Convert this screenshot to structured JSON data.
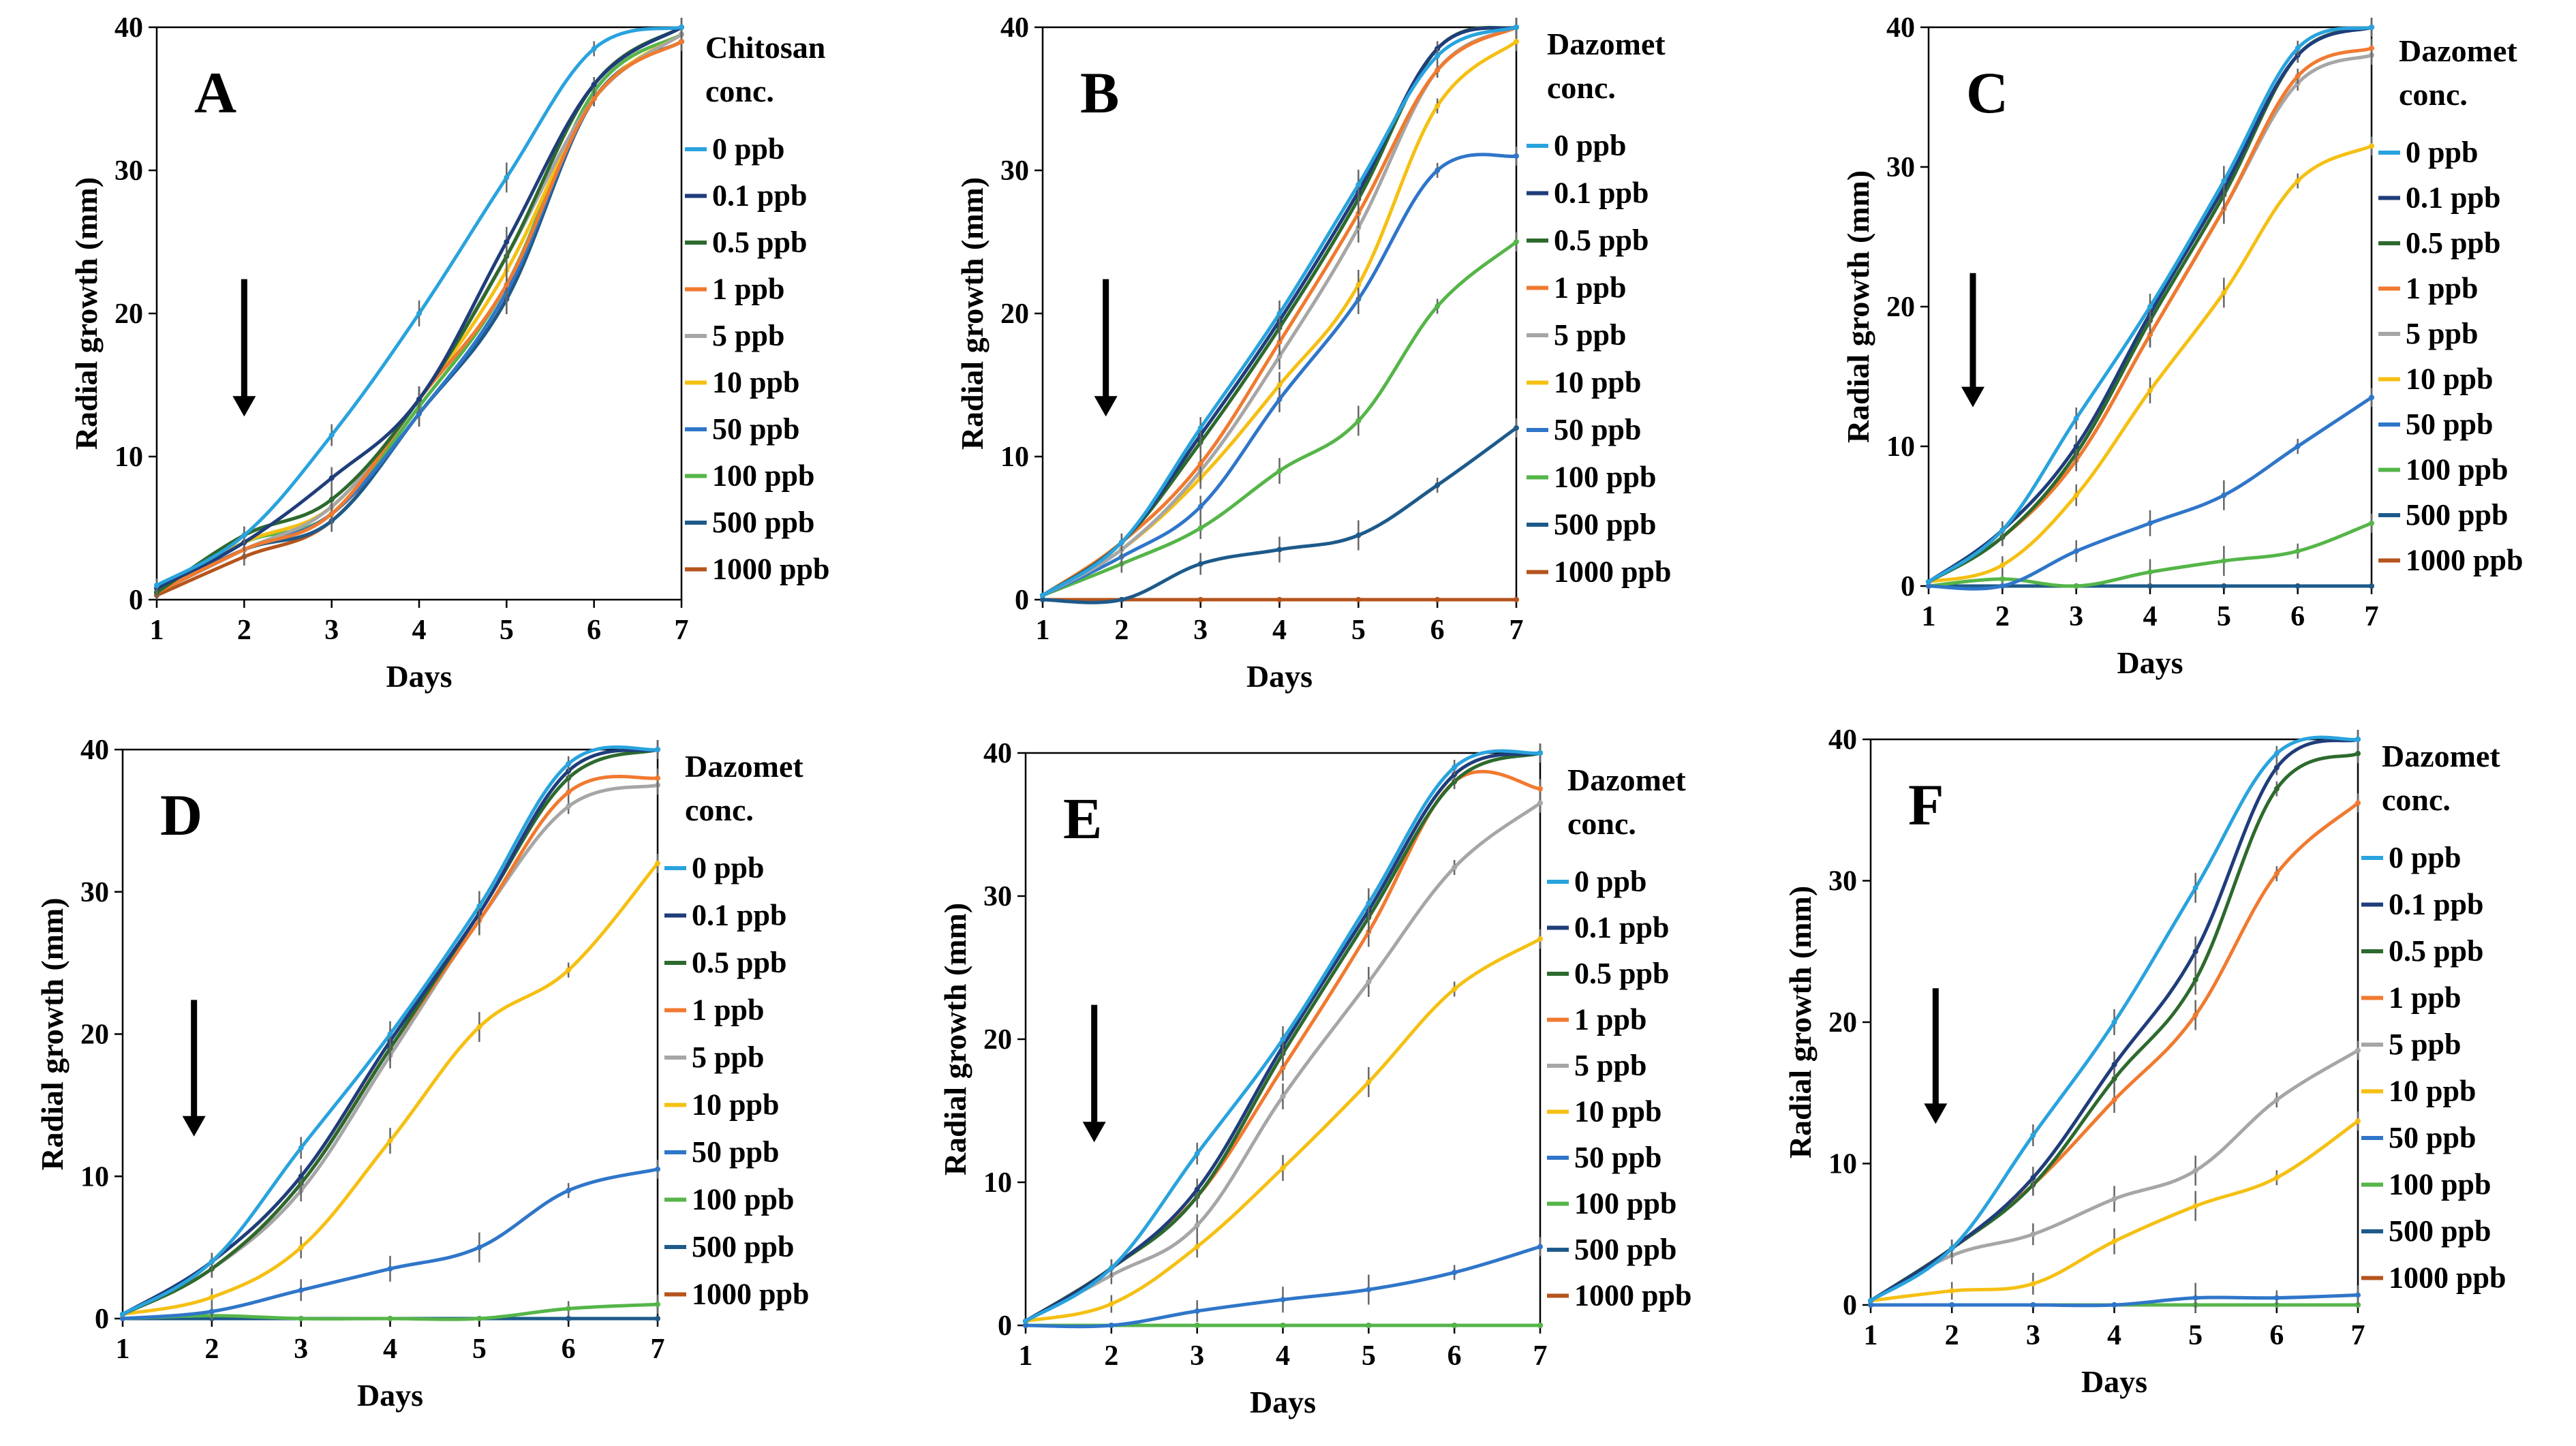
{
  "colors": {
    "0 ppb": "#29a3dd",
    "0.1 ppb": "#1f3d7a",
    "0.5 ppb": "#2d6a2d",
    "1 ppb": "#f07a30",
    "5 ppb": "#a6a6a6",
    "10 ppb": "#f5c013",
    "50 ppb": "#2f76c9",
    "100 ppb": "#55b548",
    "500 ppb": "#1d5a8a",
    "1000 ppb": "#b5541c"
  },
  "chart_data": [
    {
      "type": "line",
      "panel": "A",
      "xlabel": "Days",
      "ylabel": "Radial growth (mm)",
      "legend_title": [
        "Chitosan",
        "conc."
      ],
      "x": [
        1,
        2,
        3,
        4,
        5,
        6,
        7
      ],
      "xlim": [
        1,
        7
      ],
      "ylim": [
        0,
        40
      ],
      "yticks": [
        0,
        10,
        20,
        30,
        40
      ],
      "arrow_day": 2,
      "series": [
        {
          "name": "0 ppb",
          "values": [
            1,
            4.5,
            11.5,
            20,
            29.5,
            38.5,
            40
          ]
        },
        {
          "name": "0.1 ppb",
          "values": [
            0.8,
            4,
            8.5,
            14,
            25,
            36,
            40
          ]
        },
        {
          "name": "0.5 ppb",
          "values": [
            0.5,
            4.5,
            7,
            14,
            24,
            36,
            40
          ]
        },
        {
          "name": "1 ppb",
          "values": [
            0.5,
            3.5,
            6,
            14,
            22,
            35,
            39
          ]
        },
        {
          "name": "5 ppb",
          "values": [
            0.5,
            3.5,
            6.5,
            14,
            24,
            35,
            39.5
          ]
        },
        {
          "name": "10 ppb",
          "values": [
            0.5,
            4,
            6.5,
            14,
            23,
            35,
            39.5
          ]
        },
        {
          "name": "50 ppb",
          "values": [
            0.5,
            3.5,
            6,
            13,
            21.5,
            35,
            39
          ]
        },
        {
          "name": "100 ppb",
          "values": [
            0.5,
            4,
            6,
            13.5,
            22,
            35.5,
            39.5
          ]
        },
        {
          "name": "500 ppb",
          "values": [
            0.5,
            3.5,
            5.5,
            13,
            21,
            35,
            39
          ]
        },
        {
          "name": "1000 ppb",
          "values": [
            0.3,
            3,
            5.5,
            13,
            21,
            35,
            39
          ]
        }
      ]
    },
    {
      "type": "line",
      "panel": "B",
      "xlabel": "Days",
      "ylabel": "Radial growth (mm)",
      "legend_title": [
        "Dazomet",
        "conc."
      ],
      "x": [
        1,
        2,
        3,
        4,
        5,
        6,
        7
      ],
      "xlim": [
        1,
        7
      ],
      "ylim": [
        0,
        40
      ],
      "yticks": [
        0,
        10,
        20,
        30,
        40
      ],
      "arrow_day": 1.8,
      "series": [
        {
          "name": "0 ppb",
          "values": [
            0.3,
            4,
            12,
            20,
            29,
            38,
            40
          ]
        },
        {
          "name": "0.1 ppb",
          "values": [
            0.3,
            4,
            11.5,
            19.5,
            28.5,
            38.5,
            40
          ]
        },
        {
          "name": "0.5 ppb",
          "values": [
            0.3,
            4,
            11,
            19,
            28,
            38.5,
            40
          ]
        },
        {
          "name": "1 ppb",
          "values": [
            0.3,
            4,
            9.5,
            18,
            27,
            37,
            40
          ]
        },
        {
          "name": "5 ppb",
          "values": [
            0.3,
            3.5,
            9,
            17,
            26,
            37,
            40
          ]
        },
        {
          "name": "10 ppb",
          "values": [
            0.3,
            3.5,
            8.5,
            15,
            22,
            34.5,
            39
          ]
        },
        {
          "name": "50 ppb",
          "values": [
            0.3,
            3,
            6.5,
            14,
            21,
            30,
            31
          ]
        },
        {
          "name": "100 ppb",
          "values": [
            0.3,
            2.5,
            5,
            9,
            12.5,
            20.5,
            25
          ]
        },
        {
          "name": "500 ppb",
          "values": [
            0,
            0,
            2.5,
            3.5,
            4.5,
            8,
            12
          ]
        },
        {
          "name": "1000 ppb",
          "values": [
            0,
            0,
            0,
            0,
            0,
            0,
            0
          ]
        }
      ]
    },
    {
      "type": "line",
      "panel": "C",
      "xlabel": "Days",
      "ylabel": "Radial growth (mm)",
      "legend_title": [
        "Dazomet",
        "conc."
      ],
      "x": [
        1,
        2,
        3,
        4,
        5,
        6,
        7
      ],
      "xlim": [
        1,
        7
      ],
      "ylim": [
        0,
        40
      ],
      "yticks": [
        0,
        10,
        20,
        30,
        40
      ],
      "arrow_day": 1.6,
      "series": [
        {
          "name": "0 ppb",
          "values": [
            0.3,
            4,
            12,
            20,
            29,
            38.5,
            40
          ]
        },
        {
          "name": "0.1 ppb",
          "values": [
            0.3,
            4,
            10,
            19.5,
            28.5,
            38,
            40
          ]
        },
        {
          "name": "0.5 ppb",
          "values": [
            0.3,
            3.5,
            9.5,
            19,
            28,
            38,
            40
          ]
        },
        {
          "name": "1 ppb",
          "values": [
            0.3,
            3.5,
            9,
            18,
            27,
            36.5,
            38.5
          ]
        },
        {
          "name": "5 ppb",
          "values": [
            0.3,
            3.5,
            9,
            18,
            27,
            36,
            38
          ]
        },
        {
          "name": "10 ppb",
          "values": [
            0.3,
            1.5,
            6.5,
            14,
            21,
            29,
            31.5
          ]
        },
        {
          "name": "50 ppb",
          "values": [
            0,
            0,
            2.5,
            4.5,
            6.5,
            10,
            13.5
          ]
        },
        {
          "name": "100 ppb",
          "values": [
            0,
            0.5,
            0,
            1,
            1.8,
            2.5,
            4.5
          ]
        },
        {
          "name": "500 ppb",
          "values": [
            0,
            0,
            0,
            0,
            0,
            0,
            0
          ]
        },
        {
          "name": "1000 ppb",
          "values": [
            0,
            0,
            0,
            0,
            0,
            0,
            0
          ]
        }
      ]
    },
    {
      "type": "line",
      "panel": "D",
      "xlabel": "Days",
      "ylabel": "Radial growth (mm)",
      "legend_title": [
        "Dazomet",
        "conc."
      ],
      "x": [
        1,
        2,
        3,
        4,
        5,
        6,
        7
      ],
      "xlim": [
        1,
        7
      ],
      "ylim": [
        0,
        40
      ],
      "yticks": [
        0,
        10,
        20,
        30,
        40
      ],
      "arrow_day": 1.8,
      "series": [
        {
          "name": "0 ppb",
          "values": [
            0.3,
            4,
            12,
            20,
            29,
            39,
            40
          ]
        },
        {
          "name": "0.1 ppb",
          "values": [
            0.3,
            4,
            10,
            19.5,
            28.5,
            38.5,
            40
          ]
        },
        {
          "name": "0.5 ppb",
          "values": [
            0.3,
            3.5,
            9.5,
            19,
            28.5,
            38,
            40
          ]
        },
        {
          "name": "1 ppb",
          "values": [
            0.3,
            3.5,
            9.5,
            19,
            28,
            37,
            38
          ]
        },
        {
          "name": "5 ppb",
          "values": [
            0.3,
            3.5,
            9,
            18.5,
            28,
            36,
            37.5
          ]
        },
        {
          "name": "10 ppb",
          "values": [
            0.3,
            1.5,
            5,
            12.5,
            20.5,
            24.5,
            32
          ]
        },
        {
          "name": "50 ppb",
          "values": [
            0,
            0.5,
            2,
            3.5,
            5,
            9,
            10.5
          ]
        },
        {
          "name": "100 ppb",
          "values": [
            0,
            0.2,
            0,
            0,
            0,
            0.7,
            1
          ]
        },
        {
          "name": "500 ppb",
          "values": [
            0,
            0,
            0,
            0,
            0,
            0,
            0
          ]
        },
        {
          "name": "1000 ppb",
          "values": [
            0,
            0,
            0,
            0,
            0,
            0,
            0
          ]
        }
      ]
    },
    {
      "type": "line",
      "panel": "E",
      "xlabel": "Days",
      "ylabel": "Radial growth (mm)",
      "legend_title": [
        "Dazomet",
        "conc."
      ],
      "x": [
        1,
        2,
        3,
        4,
        5,
        6,
        7
      ],
      "xlim": [
        1,
        7
      ],
      "ylim": [
        0,
        40
      ],
      "yticks": [
        0,
        10,
        20,
        30,
        40
      ],
      "arrow_day": 1.8,
      "series": [
        {
          "name": "0 ppb",
          "values": [
            0.3,
            4,
            12,
            20,
            29.5,
            39,
            40
          ]
        },
        {
          "name": "0.1 ppb",
          "values": [
            0.3,
            4,
            9.5,
            19.5,
            29,
            38.5,
            40
          ]
        },
        {
          "name": "0.5 ppb",
          "values": [
            0.3,
            4,
            9,
            19,
            28.5,
            38,
            40
          ]
        },
        {
          "name": "1 ppb",
          "values": [
            0.3,
            4,
            9,
            18,
            27.5,
            38,
            37.5
          ]
        },
        {
          "name": "5 ppb",
          "values": [
            0.3,
            3.5,
            7,
            16,
            24,
            32,
            36.5
          ]
        },
        {
          "name": "10 ppb",
          "values": [
            0.3,
            1.5,
            5.5,
            11,
            17,
            23.5,
            27
          ]
        },
        {
          "name": "50 ppb",
          "values": [
            0,
            0,
            1,
            1.8,
            2.5,
            3.7,
            5.5
          ]
        },
        {
          "name": "100 ppb",
          "values": [
            0,
            0,
            0,
            0,
            0,
            0,
            0
          ]
        },
        {
          "name": "500 ppb",
          "values": [
            0,
            0,
            0,
            0,
            0,
            0,
            0
          ]
        },
        {
          "name": "1000 ppb",
          "values": [
            0,
            0,
            0,
            0,
            0,
            0,
            0
          ]
        }
      ]
    },
    {
      "type": "line",
      "panel": "F",
      "xlabel": "Days",
      "ylabel": "Radial growth (mm)",
      "legend_title": [
        "Dazomet",
        "conc."
      ],
      "x": [
        1,
        2,
        3,
        4,
        5,
        6,
        7
      ],
      "xlim": [
        1,
        7
      ],
      "ylim": [
        0,
        40
      ],
      "yticks": [
        0,
        10,
        20,
        30,
        40
      ],
      "arrow_day": 1.8,
      "series": [
        {
          "name": "0 ppb",
          "values": [
            0.3,
            4,
            12,
            20,
            29.5,
            39,
            40
          ]
        },
        {
          "name": "0.1 ppb",
          "values": [
            0.3,
            4,
            9,
            17,
            25,
            38,
            40
          ]
        },
        {
          "name": "0.5 ppb",
          "values": [
            0.3,
            4,
            8.5,
            16,
            23,
            36.5,
            39
          ]
        },
        {
          "name": "1 ppb",
          "values": [
            0.3,
            4,
            8.5,
            14.5,
            20.5,
            30.5,
            35.5
          ]
        },
        {
          "name": "5 ppb",
          "values": [
            0.3,
            3.5,
            5,
            7.5,
            9.5,
            14.5,
            18
          ]
        },
        {
          "name": "10 ppb",
          "values": [
            0.3,
            1,
            1.5,
            4.5,
            7,
            9,
            13
          ]
        },
        {
          "name": "50 ppb",
          "values": [
            0,
            0,
            0,
            0,
            0.5,
            0.5,
            0.7
          ]
        },
        {
          "name": "100 ppb",
          "values": [
            0,
            0,
            0,
            0,
            0,
            0,
            0
          ]
        },
        {
          "name": "500 ppb",
          "values": [
            0,
            0,
            0,
            0,
            0,
            0,
            0
          ]
        },
        {
          "name": "1000 ppb",
          "values": [
            0,
            0,
            0,
            0,
            0,
            0,
            0
          ]
        }
      ]
    }
  ]
}
